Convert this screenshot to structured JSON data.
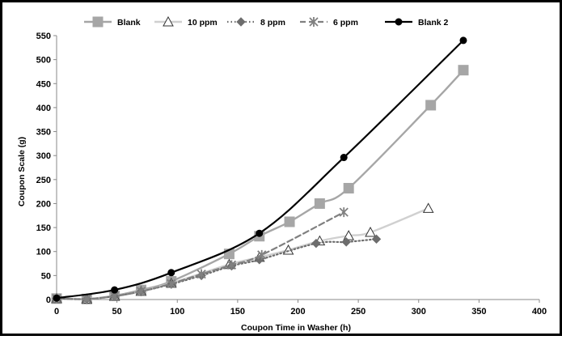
{
  "chart_data": {
    "type": "line",
    "title": "",
    "xlabel": "Coupon Time in Washer (h)",
    "ylabel": "Coupon Scale (g)",
    "xlim": [
      0,
      400
    ],
    "ylim": [
      0,
      550
    ],
    "x_ticks": [
      0,
      50,
      100,
      150,
      200,
      250,
      300,
      350,
      400
    ],
    "y_ticks": [
      0,
      50,
      100,
      150,
      200,
      250,
      300,
      350,
      400,
      450,
      500,
      550
    ],
    "grid": false,
    "legend_position": "top",
    "series": [
      {
        "name": "Blank",
        "color": "#a6a6a6",
        "dash": "solid",
        "marker": "square",
        "x": [
          0,
          25,
          48,
          70,
          95,
          143,
          168,
          193,
          218,
          242,
          310,
          337
        ],
        "y": [
          2,
          1,
          8,
          20,
          38,
          95,
          132,
          162,
          200,
          232,
          405,
          478
        ]
      },
      {
        "name": "10 ppm",
        "color": "#d0d0d0",
        "dash": "solid",
        "marker": "triangle",
        "x": [
          0,
          25,
          48,
          70,
          95,
          143,
          168,
          192,
          218,
          242,
          260,
          308
        ],
        "y": [
          2,
          1,
          7,
          17,
          34,
          73,
          88,
          103,
          122,
          133,
          140,
          190
        ]
      },
      {
        "name": "8 ppm",
        "color": "#6d6d6d",
        "dash": "dotted",
        "marker": "diamond",
        "x": [
          0,
          25,
          48,
          70,
          95,
          120,
          145,
          168,
          215,
          240,
          265
        ],
        "y": [
          2,
          1,
          7,
          17,
          32,
          50,
          70,
          83,
          117,
          120,
          126
        ]
      },
      {
        "name": "6 ppm",
        "color": "#808080",
        "dash": "dashed",
        "marker": "asterisk",
        "x": [
          0,
          25,
          48,
          70,
          95,
          120,
          145,
          170,
          238
        ],
        "y": [
          2,
          1,
          7,
          17,
          33,
          53,
          72,
          93,
          182
        ]
      },
      {
        "name": "Blank 2",
        "color": "#000000",
        "dash": "solid",
        "marker": "circle",
        "x": [
          0,
          48,
          95,
          168,
          238,
          337
        ],
        "y": [
          3,
          20,
          56,
          138,
          296,
          540
        ]
      }
    ]
  }
}
